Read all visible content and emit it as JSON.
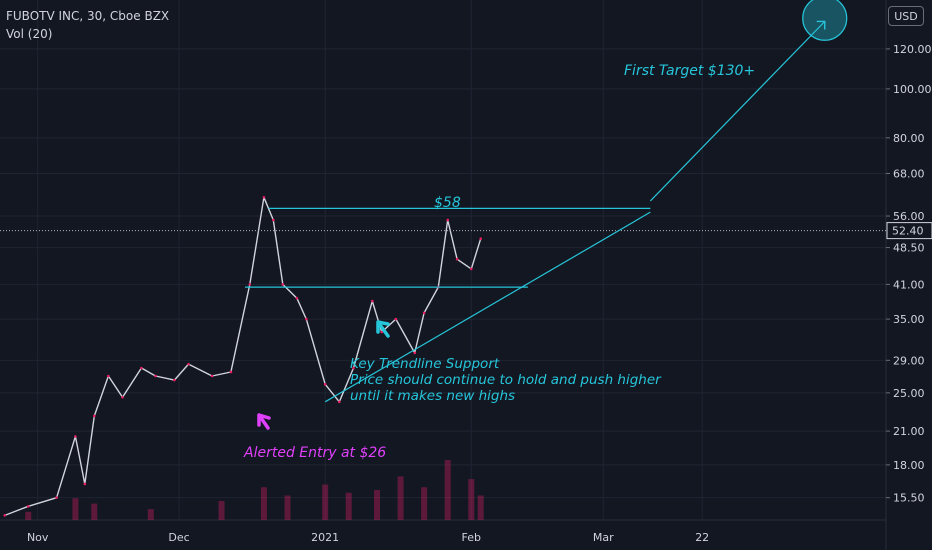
{
  "header": {
    "symbol_line": "FUBOTV INC, 30, Cboe BZX",
    "volume_line": "Vol (20)",
    "currency_button": "USD"
  },
  "annotations": {
    "first_target": "First Target $130+",
    "level_58": "$58",
    "trendline_title": "Key Trendline Support",
    "trendline_line1": "Price should continue to hold and push higher",
    "trendline_line2": "until it makes new highs",
    "entry": "Alerted Entry at $26"
  },
  "colors": {
    "background": "#131722",
    "annotation_cyan": "#26c6da",
    "annotation_pink": "#e040fb",
    "price_line": "#d1d4dc",
    "volume": "#e91e63"
  },
  "chart_data": {
    "type": "line",
    "yscale": "log",
    "ylim": [
      14,
      150
    ],
    "y_ticks": [
      15.5,
      18.0,
      21.0,
      25.0,
      29.0,
      35.0,
      41.0,
      48.5,
      56.0,
      68.0,
      80.0,
      100.0,
      120.0
    ],
    "y_tick_labels": [
      "15.50",
      "18.00",
      "21.00",
      "25.00",
      "29.00",
      "35.00",
      "41.00",
      "48.50",
      "56.00",
      "68.00",
      "80.00",
      "100.00",
      "120.00"
    ],
    "x_ticks": [
      "Nov",
      "Dec",
      "2021",
      "Feb",
      "Mar",
      "22"
    ],
    "x_tick_dates": [
      "2020-11-01",
      "2020-12-01",
      "2021-01-01",
      "2021-02-01",
      "2021-03-01",
      "2021-03-22"
    ],
    "xlim": [
      "2020-10-24",
      "2021-04-30"
    ],
    "last_price": "52.40",
    "series": [
      {
        "x": [
          "2020-10-25",
          "2020-10-30",
          "2020-11-05",
          "2020-11-09",
          "2020-11-11",
          "2020-11-13",
          "2020-11-16",
          "2020-11-19",
          "2020-11-23",
          "2020-11-26",
          "2020-11-30",
          "2020-12-03",
          "2020-12-08",
          "2020-12-12",
          "2020-12-16",
          "2020-12-19",
          "2020-12-21",
          "2020-12-23",
          "2020-12-26",
          "2020-12-28",
          "2021-01-01",
          "2021-01-04",
          "2021-01-07",
          "2021-01-11",
          "2021-01-13",
          "2021-01-16",
          "2021-01-20",
          "2021-01-22",
          "2021-01-25",
          "2021-01-27",
          "2021-01-29",
          "2021-02-01",
          "2021-02-03"
        ],
        "y": [
          14.3,
          14.9,
          15.5,
          20.5,
          16.5,
          22.5,
          27.0,
          24.5,
          28.0,
          27.0,
          26.5,
          28.5,
          27.0,
          27.5,
          41.0,
          61.0,
          55.0,
          41.0,
          38.5,
          35.0,
          26.0,
          24.0,
          28.0,
          38.0,
          33.0,
          35.0,
          30.0,
          36.0,
          40.5,
          55.0,
          46.0,
          44.0,
          50.5
        ]
      }
    ],
    "volume": {
      "x": [
        "2020-10-30",
        "2020-11-09",
        "2020-11-13",
        "2020-11-25",
        "2020-12-10",
        "2020-12-19",
        "2020-12-24",
        "2021-01-01",
        "2021-01-06",
        "2021-01-12",
        "2021-01-17",
        "2021-01-22",
        "2021-01-27",
        "2021-02-01",
        "2021-02-03"
      ],
      "v": [
        0.3,
        0.8,
        0.6,
        0.4,
        0.7,
        1.2,
        0.9,
        1.3,
        1.0,
        1.1,
        1.6,
        1.2,
        2.2,
        1.5,
        0.9
      ]
    },
    "levels": [
      {
        "y": 58.0,
        "x": [
          "2020-12-20",
          "2021-03-11"
        ],
        "color": "#26c6da"
      },
      {
        "y": 40.5,
        "x": [
          "2020-12-15",
          "2021-02-13"
        ],
        "color": "#26c6da"
      }
    ],
    "trendlines": [
      {
        "x": [
          "2021-01-01",
          "2021-03-11"
        ],
        "y": [
          24.0,
          57.0
        ],
        "color": "#26c6da"
      },
      {
        "x": [
          "2021-03-11",
          "2021-04-17"
        ],
        "y": [
          60.0,
          136.0
        ],
        "color": "#26c6da"
      }
    ],
    "target_circle": {
      "x": "2021-04-17",
      "y": 138.0
    }
  }
}
